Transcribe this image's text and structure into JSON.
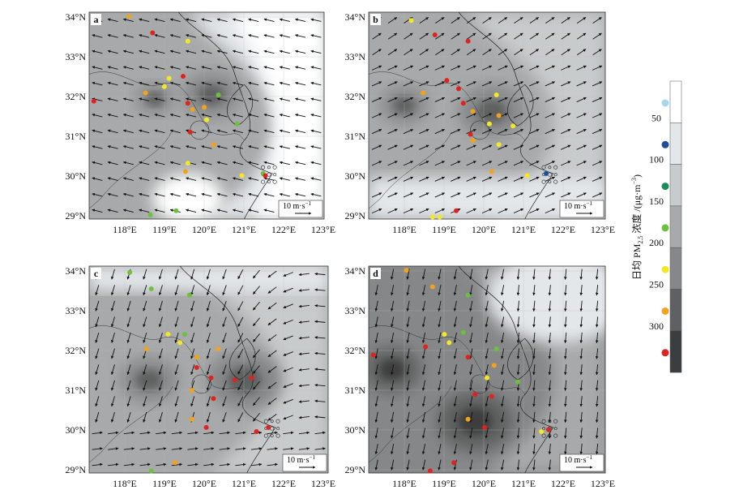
{
  "panels": [
    {
      "tag": "a",
      "region": "light",
      "hotspots": [
        [
          0.52,
          0.4,
          0.12
        ],
        [
          0.28,
          0.42,
          0.08
        ]
      ],
      "wind": {
        "u": -1.0,
        "v": 0.25,
        "rotate_east": true
      },
      "sites": [
        "orange",
        "red",
        "yellow",
        "yellow",
        "red",
        "red",
        "orange",
        "yellow",
        "red",
        "orange",
        "green",
        "orange",
        "yellow",
        "red",
        "green",
        "orange",
        "yellow",
        "orange",
        "yellow",
        "green",
        "green",
        "green",
        "red"
      ]
    },
    {
      "tag": "b",
      "region": "mid",
      "hotspots": [
        [
          0.52,
          0.48,
          0.14
        ],
        [
          0.15,
          0.45,
          0.1
        ]
      ],
      "wind": {
        "u": 0.9,
        "v": 0.4,
        "rotate_east": false
      },
      "sites": [
        "yellow",
        "red",
        "red",
        "red",
        "red",
        "orange",
        "red",
        "orange",
        "yellow",
        "orange",
        "yellow",
        "red",
        "yellow",
        "orange",
        "yellow",
        "orange",
        "blue",
        "yellow",
        "yellow",
        "red",
        "yellow"
      ]
    },
    {
      "tag": "c",
      "region": "mid",
      "hotspots": [
        [
          0.65,
          0.55,
          0.16
        ],
        [
          0.25,
          0.55,
          0.12
        ]
      ],
      "wind": {
        "u": -0.3,
        "v": -1.0,
        "rotate_east": true
      },
      "sites": [
        "green",
        "green",
        "green",
        "yellow",
        "yellow",
        "orange",
        "green",
        "orange",
        "orange",
        "red",
        "red",
        "red",
        "red",
        "orange",
        "red",
        "orange",
        "red",
        "red",
        "green",
        "orange",
        "red"
      ]
    },
    {
      "tag": "d",
      "region": "dark",
      "hotspots": [
        [
          0.45,
          0.75,
          0.16
        ],
        [
          0.1,
          0.5,
          0.12
        ]
      ],
      "wind": {
        "u": -0.2,
        "v": -1.0,
        "rotate_east": false
      },
      "sites": [
        "orange",
        "orange",
        "green",
        "yellow",
        "yellow",
        "green",
        "red",
        "red",
        "yellow",
        "orange",
        "green",
        "green",
        "red",
        "red",
        "orange",
        "red",
        "red",
        "yellow",
        "red",
        "red",
        "red"
      ]
    }
  ],
  "axes": {
    "lon_labels": [
      "118°E",
      "119°E",
      "120°E",
      "121°E",
      "122°E",
      "123°E"
    ],
    "lat_labels": [
      "34°N",
      "33°N",
      "32°N",
      "31°N",
      "30°N",
      "29°N"
    ]
  },
  "wind_scale": {
    "label": "10 m·s",
    "superscript": "−1"
  },
  "legend": {
    "title_prefix": "日均 PM",
    "title_sub": "2.5",
    "title_suffix": " 浓度 /(μg·m",
    "title_sup": "−3",
    "title_end": ")",
    "ticks": [
      "50",
      "100",
      "150",
      "200",
      "250",
      "300"
    ],
    "bands": [
      "#ffffff",
      "#e3e7ea",
      "#c8cbcc",
      "#a7a9aa",
      "#858788",
      "#5f6061",
      "#3c3d3e"
    ],
    "site_classes": [
      {
        "name": "lightblue",
        "color": "#a6d5ee"
      },
      {
        "name": "blue",
        "color": "#1f4e9c"
      },
      {
        "name": "darkgreen",
        "color": "#1d8a5a"
      },
      {
        "name": "green",
        "color": "#6cc13c"
      },
      {
        "name": "yellow",
        "color": "#f3e825"
      },
      {
        "name": "orange",
        "color": "#f3a21c"
      },
      {
        "name": "red",
        "color": "#e0231f"
      }
    ]
  }
}
